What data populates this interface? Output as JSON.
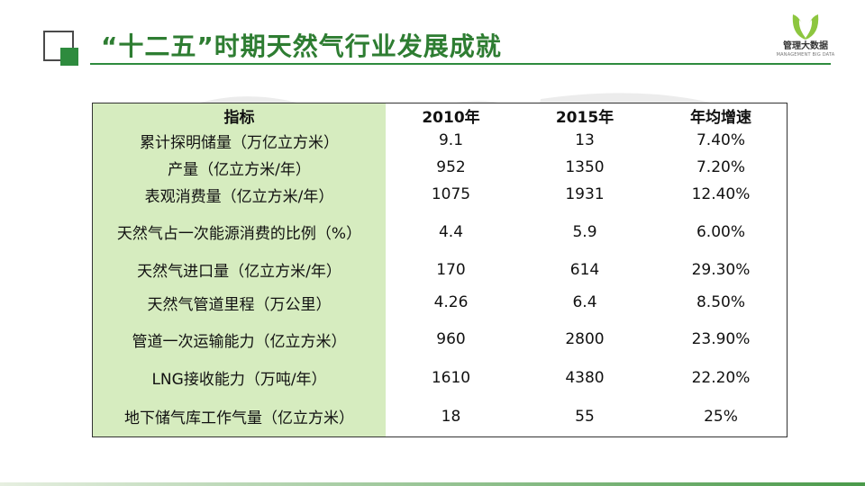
{
  "slide": {
    "title": "“十二五”时期天然气行业发展成就",
    "logo": {
      "name": "管理大数据",
      "subtitle": "MANAGEMENT BIG DATA",
      "accent_color": "#8dc63f"
    },
    "accent_color": "#2e8b3e"
  },
  "table": {
    "headers": [
      "指标",
      "2010年",
      "2015年",
      "年均增速"
    ],
    "rows": [
      [
        "累计探明储量（万亿立方米）",
        "9.1",
        "13",
        "7.40%"
      ],
      [
        "产量（亿立方米/年）",
        "952",
        "1350",
        "7.20%"
      ],
      [
        "表观消费量（亿立方米/年）",
        "1075",
        "1931",
        "12.40%"
      ],
      [
        "天然气占一次能源消费的比例（%）",
        "4.4",
        "5.9",
        "6.00%"
      ],
      [
        "天然气进口量（亿立方米/年）",
        "170",
        "614",
        "29.30%"
      ],
      [
        "天然气管道里程（万公里）",
        "4.26",
        "6.4",
        "8.50%"
      ],
      [
        "管道一次运输能力（亿立方米）",
        "960",
        "2800",
        "23.90%"
      ],
      [
        "LNG接收能力（万吨/年）",
        "1610",
        "4380",
        "22.20%"
      ],
      [
        "地下储气库工作气量（亿立方米）",
        "18",
        "55",
        "25%"
      ]
    ],
    "label_column_color": "#d6ecbf"
  }
}
